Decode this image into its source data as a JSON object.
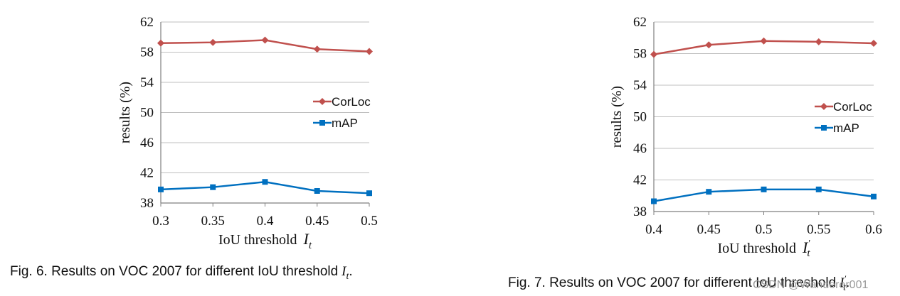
{
  "captions": {
    "fig6_prefix": "Fig. 6. Results on VOC 2007 for different IoU threshold",
    "fig6_symbol": "I",
    "fig6_sub": "t",
    "fig6_suffix": ".",
    "fig7_prefix": "Fig. 7. Results on VOC 2007 for different IoU threshold",
    "fig7_symbol": "I",
    "fig7_sub": "t",
    "fig7_prime": "′",
    "fig7_suffix": "."
  },
  "watermark": "CSDN @Wanderer001",
  "colors": {
    "corloc": "#c0504d",
    "map": "#0070c0",
    "grid": "#bfbfbf",
    "axis": "#7f7f7f"
  },
  "chart_data": [
    {
      "type": "line",
      "title": "",
      "xlabel_text": "IoU threshold",
      "xlabel_symbol": "I",
      "xlabel_sub": "t",
      "xlabel_prime": "",
      "ylabel": "results (%)",
      "x": [
        0.3,
        0.35,
        0.4,
        0.45,
        0.5
      ],
      "x_tick_labels": [
        "0.3",
        "0.35",
        "0.4",
        "0.45",
        "0.5"
      ],
      "ylim": [
        38,
        62
      ],
      "y_ticks": [
        38,
        42,
        46,
        50,
        54,
        58,
        62
      ],
      "grid": true,
      "legend_position": "right",
      "series": [
        {
          "name": "CorLoc",
          "marker": "diamond",
          "values": [
            59.2,
            59.3,
            59.6,
            58.4,
            58.1
          ]
        },
        {
          "name": "mAP",
          "marker": "square",
          "values": [
            39.8,
            40.1,
            40.8,
            39.6,
            39.3
          ]
        }
      ]
    },
    {
      "type": "line",
      "title": "",
      "xlabel_text": "IoU threshold",
      "xlabel_symbol": "I",
      "xlabel_sub": "t",
      "xlabel_prime": "′",
      "ylabel": "results (%)",
      "x": [
        0.4,
        0.45,
        0.5,
        0.55,
        0.6
      ],
      "x_tick_labels": [
        "0.4",
        "0.45",
        "0.5",
        "0.55",
        "0.6"
      ],
      "ylim": [
        38,
        62
      ],
      "y_ticks": [
        38,
        42,
        46,
        50,
        54,
        58,
        62
      ],
      "grid": true,
      "legend_position": "right",
      "series": [
        {
          "name": "CorLoc",
          "marker": "diamond",
          "values": [
            57.9,
            59.1,
            59.6,
            59.5,
            59.3
          ]
        },
        {
          "name": "mAP",
          "marker": "square",
          "values": [
            39.3,
            40.5,
            40.8,
            40.8,
            39.9
          ]
        }
      ]
    }
  ]
}
